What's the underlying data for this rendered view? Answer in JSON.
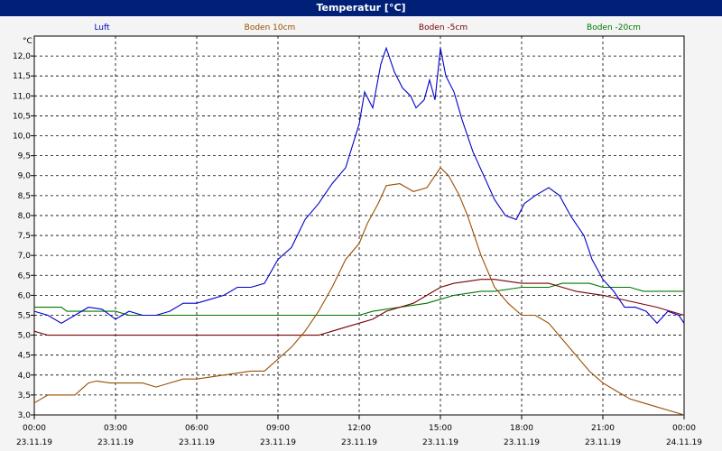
{
  "window": {
    "title": "Temperatur [°C]"
  },
  "chart_data": {
    "type": "line",
    "title": "Temperatur [°C]",
    "ylabel": "°C",
    "ylim": [
      3.0,
      12.5
    ],
    "y_ticks": [
      3.0,
      3.5,
      4.0,
      4.5,
      5.0,
      5.5,
      6.0,
      6.5,
      7.0,
      7.5,
      8.0,
      8.5,
      9.0,
      9.5,
      10.0,
      10.5,
      11.0,
      11.5,
      12.0
    ],
    "y_tick_labels": [
      "3,0",
      "3,5",
      "4,0",
      "4,5",
      "5,0",
      "5,5",
      "6,0",
      "6,5",
      "7,0",
      "7,5",
      "8,0",
      "8,5",
      "9,0",
      "9,5",
      "10,0",
      "10,5",
      "11,0",
      "11,5",
      "12,0"
    ],
    "xlim": [
      0,
      24
    ],
    "x_ticks": [
      0,
      3,
      6,
      9,
      12,
      15,
      18,
      21,
      24
    ],
    "x_tick_labels": [
      {
        "time": "00:00",
        "date": "23.11.19"
      },
      {
        "time": "03:00",
        "date": "23.11.19"
      },
      {
        "time": "06:00",
        "date": "23.11.19"
      },
      {
        "time": "09:00",
        "date": "23.11.19"
      },
      {
        "time": "12:00",
        "date": "23.11.19"
      },
      {
        "time": "15:00",
        "date": "23.11.19"
      },
      {
        "time": "18:00",
        "date": "23.11.19"
      },
      {
        "time": "21:00",
        "date": "23.11.19"
      },
      {
        "time": "00:00",
        "date": "24.11.19"
      }
    ],
    "grid": true,
    "legend": "top",
    "series": [
      {
        "name": "Luft",
        "color": "#0000cc",
        "points": [
          [
            0,
            5.6
          ],
          [
            0.5,
            5.5
          ],
          [
            1,
            5.3
          ],
          [
            1.5,
            5.5
          ],
          [
            2,
            5.7
          ],
          [
            2.5,
            5.65
          ],
          [
            3,
            5.4
          ],
          [
            3.5,
            5.6
          ],
          [
            4,
            5.5
          ],
          [
            4.5,
            5.5
          ],
          [
            5,
            5.6
          ],
          [
            5.5,
            5.8
          ],
          [
            6,
            5.8
          ],
          [
            6.5,
            5.9
          ],
          [
            7,
            6.0
          ],
          [
            7.5,
            6.2
          ],
          [
            8,
            6.2
          ],
          [
            8.5,
            6.3
          ],
          [
            9,
            6.9
          ],
          [
            9.5,
            7.2
          ],
          [
            10,
            7.9
          ],
          [
            10.5,
            8.3
          ],
          [
            11,
            8.8
          ],
          [
            11.5,
            9.2
          ],
          [
            12,
            10.3
          ],
          [
            12.2,
            11.1
          ],
          [
            12.5,
            10.7
          ],
          [
            12.8,
            11.8
          ],
          [
            13,
            12.2
          ],
          [
            13.3,
            11.6
          ],
          [
            13.6,
            11.2
          ],
          [
            13.9,
            11.0
          ],
          [
            14.1,
            10.7
          ],
          [
            14.4,
            10.9
          ],
          [
            14.6,
            11.4
          ],
          [
            14.8,
            10.9
          ],
          [
            15,
            12.2
          ],
          [
            15.2,
            11.5
          ],
          [
            15.5,
            11.1
          ],
          [
            15.8,
            10.4
          ],
          [
            16.2,
            9.6
          ],
          [
            16.6,
            9.0
          ],
          [
            17,
            8.4
          ],
          [
            17.4,
            8.0
          ],
          [
            17.8,
            7.9
          ],
          [
            18.1,
            8.3
          ],
          [
            18.5,
            8.5
          ],
          [
            19,
            8.7
          ],
          [
            19.4,
            8.5
          ],
          [
            19.8,
            8.0
          ],
          [
            20.3,
            7.5
          ],
          [
            20.6,
            6.9
          ],
          [
            21,
            6.4
          ],
          [
            21.4,
            6.1
          ],
          [
            21.8,
            5.7
          ],
          [
            22.2,
            5.7
          ],
          [
            22.6,
            5.6
          ],
          [
            23,
            5.3
          ],
          [
            23.4,
            5.6
          ],
          [
            23.8,
            5.5
          ],
          [
            24,
            5.3
          ]
        ]
      },
      {
        "name": "Boden 10cm",
        "color": "#994d00",
        "points": [
          [
            0,
            3.3
          ],
          [
            0.5,
            3.5
          ],
          [
            1,
            3.5
          ],
          [
            1.5,
            3.5
          ],
          [
            2,
            3.8
          ],
          [
            2.3,
            3.85
          ],
          [
            2.8,
            3.8
          ],
          [
            3,
            3.8
          ],
          [
            4,
            3.8
          ],
          [
            4.5,
            3.7
          ],
          [
            5,
            3.8
          ],
          [
            5.5,
            3.9
          ],
          [
            6,
            3.9
          ],
          [
            7,
            4.0
          ],
          [
            8,
            4.1
          ],
          [
            8.5,
            4.1
          ],
          [
            9,
            4.4
          ],
          [
            9.5,
            4.7
          ],
          [
            10,
            5.1
          ],
          [
            10.5,
            5.6
          ],
          [
            11,
            6.2
          ],
          [
            11.5,
            6.9
          ],
          [
            12,
            7.3
          ],
          [
            12.3,
            7.8
          ],
          [
            12.7,
            8.3
          ],
          [
            13,
            8.75
          ],
          [
            13.5,
            8.8
          ],
          [
            14,
            8.6
          ],
          [
            14.5,
            8.7
          ],
          [
            15,
            9.2
          ],
          [
            15.3,
            9.0
          ],
          [
            15.7,
            8.5
          ],
          [
            16,
            8.0
          ],
          [
            16.5,
            7.0
          ],
          [
            17,
            6.2
          ],
          [
            17.5,
            5.8
          ],
          [
            18,
            5.5
          ],
          [
            18.5,
            5.5
          ],
          [
            19,
            5.3
          ],
          [
            19.5,
            4.9
          ],
          [
            20,
            4.5
          ],
          [
            20.5,
            4.1
          ],
          [
            21,
            3.8
          ],
          [
            21.5,
            3.6
          ],
          [
            22,
            3.4
          ],
          [
            22.5,
            3.3
          ],
          [
            23,
            3.2
          ],
          [
            23.5,
            3.1
          ],
          [
            24,
            3.0
          ]
        ]
      },
      {
        "name": "Boden -5cm",
        "color": "#770000",
        "points": [
          [
            0,
            5.1
          ],
          [
            0.5,
            5.0
          ],
          [
            9,
            5.0
          ],
          [
            10.5,
            5.0
          ],
          [
            11,
            5.1
          ],
          [
            11.5,
            5.2
          ],
          [
            12,
            5.3
          ],
          [
            12.5,
            5.4
          ],
          [
            13,
            5.6
          ],
          [
            13.5,
            5.7
          ],
          [
            14,
            5.8
          ],
          [
            14.5,
            6.0
          ],
          [
            15,
            6.2
          ],
          [
            15.5,
            6.3
          ],
          [
            16,
            6.35
          ],
          [
            16.5,
            6.4
          ],
          [
            17,
            6.4
          ],
          [
            17.5,
            6.35
          ],
          [
            18,
            6.3
          ],
          [
            19,
            6.3
          ],
          [
            19.5,
            6.2
          ],
          [
            20,
            6.1
          ],
          [
            21,
            6.0
          ],
          [
            22,
            5.85
          ],
          [
            23,
            5.7
          ],
          [
            23.5,
            5.6
          ],
          [
            24,
            5.5
          ]
        ]
      },
      {
        "name": "Boden -20cm",
        "color": "#007700",
        "points": [
          [
            0,
            5.7
          ],
          [
            1,
            5.7
          ],
          [
            1.2,
            5.6
          ],
          [
            3,
            5.6
          ],
          [
            3.5,
            5.5
          ],
          [
            6,
            5.5
          ],
          [
            12,
            5.5
          ],
          [
            12.5,
            5.6
          ],
          [
            13.5,
            5.7
          ],
          [
            14.5,
            5.8
          ],
          [
            15,
            5.9
          ],
          [
            15.5,
            6.0
          ],
          [
            16.5,
            6.1
          ],
          [
            17,
            6.1
          ],
          [
            18,
            6.2
          ],
          [
            19,
            6.2
          ],
          [
            19.5,
            6.3
          ],
          [
            20.5,
            6.3
          ],
          [
            21,
            6.2
          ],
          [
            22,
            6.2
          ],
          [
            22.5,
            6.1
          ],
          [
            24,
            6.1
          ]
        ]
      }
    ]
  }
}
